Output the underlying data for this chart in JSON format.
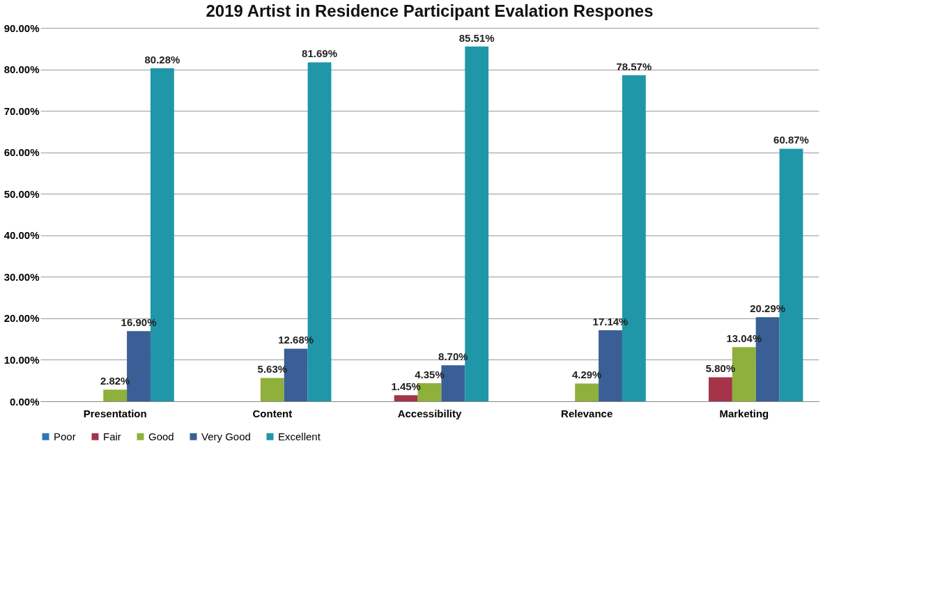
{
  "chart_data": {
    "type": "bar",
    "title": "2019 Artist in Residence Participant Evalation Respones",
    "categories": [
      "Presentation",
      "Content",
      "Accessibility",
      "Relevance",
      "Marketing"
    ],
    "series": [
      {
        "name": "Poor",
        "color": "#2e75b6",
        "values": [
          null,
          null,
          null,
          null,
          null
        ],
        "value_labels": [
          null,
          null,
          null,
          null,
          null
        ]
      },
      {
        "name": "Fair",
        "color": "#a5334a",
        "values": [
          null,
          null,
          1.45,
          null,
          5.8
        ],
        "value_labels": [
          null,
          null,
          "1.45%",
          null,
          "5.80%"
        ]
      },
      {
        "name": "Good",
        "color": "#8fb03a",
        "values": [
          2.82,
          5.63,
          4.35,
          4.29,
          13.04
        ],
        "value_labels": [
          "2.82%",
          "5.63%",
          "4.35%",
          "4.29%",
          "13.04%"
        ]
      },
      {
        "name": "Very Good",
        "color": "#3a5f96",
        "values": [
          16.9,
          12.68,
          8.7,
          17.14,
          20.29
        ],
        "value_labels": [
          "16.90%",
          "12.68%",
          "8.70%",
          "17.14%",
          "20.29%"
        ]
      },
      {
        "name": "Excellent",
        "color": "#1f97a8",
        "values": [
          80.28,
          81.69,
          85.51,
          78.57,
          60.87
        ],
        "value_labels": [
          "80.28%",
          "81.69%",
          "85.51%",
          "78.57%",
          "60.87%"
        ]
      }
    ],
    "ylim": [
      0,
      90
    ],
    "yticks": [
      {
        "value": 0,
        "label": "0.00%"
      },
      {
        "value": 10,
        "label": "10.00%"
      },
      {
        "value": 20,
        "label": "20.00%"
      },
      {
        "value": 30,
        "label": "30.00%"
      },
      {
        "value": 40,
        "label": "40.00%"
      },
      {
        "value": 50,
        "label": "50.00%"
      },
      {
        "value": 60,
        "label": "60.00%"
      },
      {
        "value": 70,
        "label": "70.00%"
      },
      {
        "value": 80,
        "label": "80.00%"
      },
      {
        "value": 90,
        "label": "90.00%"
      }
    ],
    "grid": "y",
    "legend": "bottom"
  }
}
